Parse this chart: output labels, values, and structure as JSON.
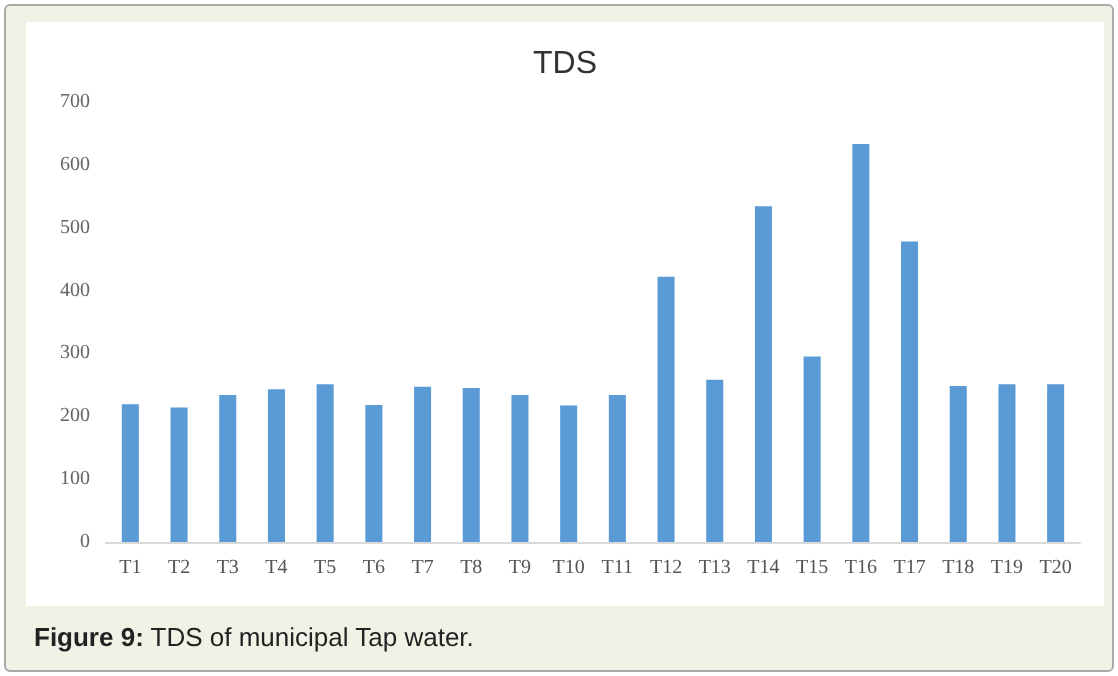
{
  "chart_data": {
    "type": "bar",
    "title": "TDS",
    "categories": [
      "T1",
      "T2",
      "T3",
      "T4",
      "T5",
      "T6",
      "T7",
      "T8",
      "T9",
      "T10",
      "T11",
      "T12",
      "T13",
      "T14",
      "T15",
      "T16",
      "T17",
      "T18",
      "T19",
      "T20"
    ],
    "values": [
      219,
      214,
      234,
      243,
      251,
      218,
      247,
      245,
      234,
      217,
      234,
      422,
      258,
      534,
      295,
      633,
      478,
      248,
      251,
      251
    ],
    "color": "#5b9bd5",
    "ylim": [
      0,
      700
    ],
    "yticks": [
      0,
      100,
      200,
      300,
      400,
      500,
      600,
      700
    ],
    "grid": false,
    "annotations": [
      "Figure 9: TDS of municipal Tap water."
    ]
  }
}
